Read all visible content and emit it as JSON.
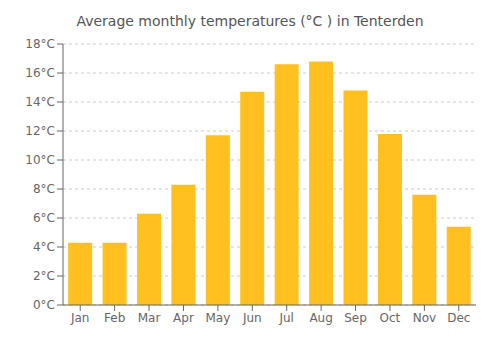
{
  "chart_data": {
    "type": "bar",
    "title": "Average monthly temperatures (°C ) in Tenterden",
    "categories": [
      "Jan",
      "Feb",
      "Mar",
      "Apr",
      "May",
      "Jun",
      "Jul",
      "Aug",
      "Sep",
      "Oct",
      "Nov",
      "Dec"
    ],
    "values": [
      4.3,
      4.3,
      6.3,
      8.3,
      11.7,
      14.7,
      16.6,
      16.8,
      14.8,
      11.8,
      7.6,
      5.4
    ],
    "color": "#FFC020",
    "ylim": [
      0,
      18
    ],
    "yticks": [
      {
        "value": 0,
        "label": "0°C"
      },
      {
        "value": 2,
        "label": "2°C"
      },
      {
        "value": 4,
        "label": "4°C"
      },
      {
        "value": 6,
        "label": "6°C"
      },
      {
        "value": 8,
        "label": "8°C"
      },
      {
        "value": 10,
        "label": "10°C"
      },
      {
        "value": 12,
        "label": "12°C"
      },
      {
        "value": 14,
        "label": "14°C"
      },
      {
        "value": 16,
        "label": "16°C"
      },
      {
        "value": 18,
        "label": "18°C"
      }
    ],
    "grid": true
  }
}
